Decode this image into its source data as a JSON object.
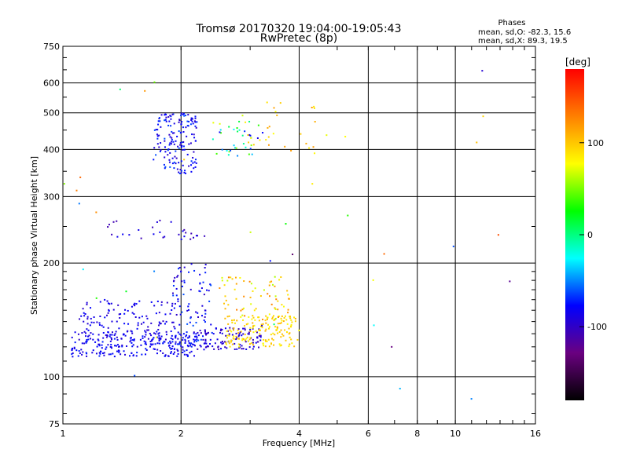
{
  "chart_data": {
    "type": "scatter",
    "title": "Tromsø 20170320 19:04:00-19:05:43",
    "subtitle": "RwPretec (8p)",
    "xlabel": "Frequency [MHz]",
    "ylabel": "Stationary phase Virtual Height [km]",
    "x_scale": "log",
    "y_scale": "log",
    "xlim": [
      1,
      16
    ],
    "ylim": [
      75,
      750
    ],
    "x_ticks": [
      1,
      2,
      4,
      6,
      8,
      10,
      16
    ],
    "y_ticks": [
      75,
      100,
      200,
      300,
      400,
      500,
      600,
      750
    ],
    "grid": true,
    "phase_stats": {
      "heading": "Phases",
      "line_o": "mean, sd,O: -82.3, 15.6",
      "line_x": "mean, sd,X:  89.3, 19.5"
    },
    "colorbar": {
      "unit": "[deg]",
      "range": [
        -180,
        180
      ],
      "tick_values": [
        100,
        0,
        -100
      ],
      "tick_labels": [
        "100",
        "0",
        "-100"
      ],
      "colormap": [
        "#000000",
        "#6a0080",
        "#0000ff",
        "#00ffff",
        "#00ff00",
        "#ffff00",
        "#ff8000",
        "#ff0000"
      ]
    },
    "series": [
      {
        "clusters": [
          {
            "x": [
              1.05,
              2.2
            ],
            "y": [
              113,
              132
            ],
            "count": 260,
            "phase": [
              -95,
              -70
            ]
          },
          {
            "x": [
              1.1,
              2.0
            ],
            "y": [
              125,
              160
            ],
            "count": 120,
            "phase": [
              -100,
              -75
            ]
          },
          {
            "x": [
              1.9,
              2.4
            ],
            "y": [
              120,
              200
            ],
            "count": 90,
            "phase": [
              -100,
              -60
            ]
          },
          {
            "x": [
              2.2,
              3.2
            ],
            "y": [
              118,
              135
            ],
            "count": 110,
            "phase": [
              -110,
              -80
            ]
          },
          {
            "x": [
              2.6,
              4.0
            ],
            "y": [
              120,
              145
            ],
            "count": 160,
            "phase": [
              75,
              110
            ]
          },
          {
            "x": [
              2.5,
              3.8
            ],
            "y": [
              140,
              185
            ],
            "count": 70,
            "phase": [
              60,
              130
            ]
          },
          {
            "x": [
              1.7,
              2.2
            ],
            "y": [
              345,
              500
            ],
            "count": 160,
            "phase": [
              -100,
              -60
            ]
          },
          {
            "x": [
              2.4,
              3.2
            ],
            "y": [
              380,
              480
            ],
            "count": 40,
            "phase": [
              -90,
              100
            ]
          },
          {
            "x": [
              1.3,
              2.3
            ],
            "y": [
              230,
              260
            ],
            "count": 30,
            "phase": [
              -110,
              -80
            ]
          },
          {
            "x": [
              3.0,
              5.6
            ],
            "y": [
              390,
              540
            ],
            "count": 25,
            "phase": [
              70,
              120
            ]
          },
          {
            "x": [
              1.0,
              16.0
            ],
            "y": [
              78,
              650
            ],
            "count": 40,
            "phase": [
              -150,
              150
            ]
          }
        ]
      }
    ]
  }
}
